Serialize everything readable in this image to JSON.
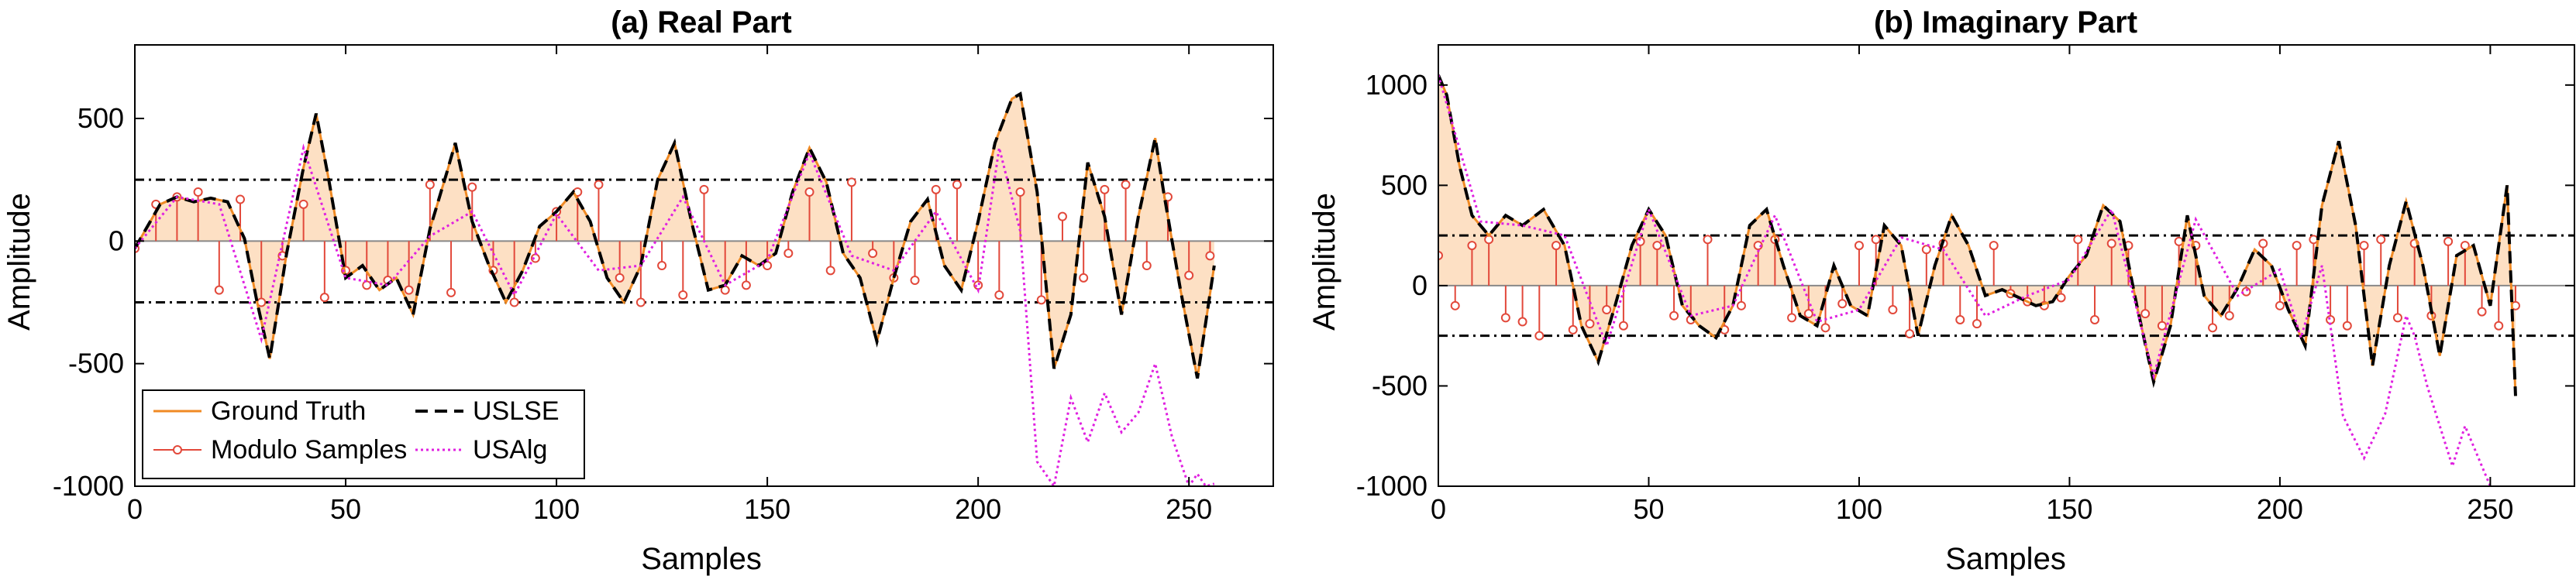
{
  "chart_data": [
    {
      "type": "line",
      "title": "(a) Real Part",
      "xlabel": "Samples",
      "ylabel": "Amplitude",
      "xlim": [
        0,
        270
      ],
      "ylim": [
        -1000,
        800
      ],
      "xticks": [
        0,
        50,
        100,
        150,
        200,
        250
      ],
      "yticks": [
        -1000,
        -500,
        0,
        500
      ],
      "ytick_labels": [
        "-1000",
        "-500",
        "0",
        "500"
      ],
      "threshold": 250,
      "legend_position": "bottom-left",
      "legend_entries": [
        "Ground Truth",
        "USLSE",
        "Modulo Samples",
        "USAlg"
      ],
      "series": [
        {
          "name": "Ground Truth",
          "x": [
            0,
            6,
            10,
            14,
            18,
            22,
            26,
            29,
            32,
            36,
            40,
            43,
            46,
            50,
            54,
            58,
            62,
            66,
            70,
            74,
            76,
            80,
            84,
            88,
            92,
            96,
            100,
            104,
            108,
            112,
            116,
            120,
            124,
            128,
            132,
            136,
            140,
            144,
            148,
            152,
            156,
            160,
            164,
            168,
            172,
            176,
            180,
            184,
            188,
            192,
            196,
            200,
            204,
            208,
            210,
            214,
            218,
            222,
            226,
            230,
            234,
            238,
            242,
            244,
            248,
            252,
            256
          ],
          "y": [
            -30,
            150,
            180,
            160,
            175,
            160,
            10,
            -250,
            -480,
            -50,
            300,
            520,
            250,
            -150,
            -100,
            -200,
            -150,
            -300,
            50,
            280,
            400,
            80,
            -100,
            -250,
            -120,
            60,
            120,
            200,
            80,
            -150,
            -250,
            -100,
            250,
            400,
            80,
            -200,
            -180,
            -60,
            -100,
            -50,
            200,
            380,
            240,
            -50,
            -150,
            -410,
            -150,
            80,
            170,
            -100,
            -200,
            80,
            400,
            580,
            600,
            200,
            -520,
            -300,
            320,
            100,
            -300,
            100,
            420,
            200,
            -200,
            -560,
            -100
          ]
        },
        {
          "name": "USLSE",
          "x": [
            0,
            6,
            10,
            14,
            18,
            22,
            26,
            29,
            32,
            36,
            40,
            43,
            46,
            50,
            54,
            58,
            62,
            66,
            70,
            74,
            76,
            80,
            84,
            88,
            92,
            96,
            100,
            104,
            108,
            112,
            116,
            120,
            124,
            128,
            132,
            136,
            140,
            144,
            148,
            152,
            156,
            160,
            164,
            168,
            172,
            176,
            180,
            184,
            188,
            192,
            196,
            200,
            204,
            208,
            210,
            214,
            218,
            222,
            226,
            230,
            234,
            238,
            242,
            244,
            248,
            252,
            256
          ],
          "y": [
            -30,
            150,
            180,
            160,
            175,
            160,
            10,
            -250,
            -480,
            -50,
            300,
            520,
            250,
            -150,
            -100,
            -200,
            -150,
            -300,
            50,
            280,
            400,
            80,
            -100,
            -250,
            -120,
            60,
            120,
            200,
            80,
            -150,
            -250,
            -100,
            250,
            400,
            80,
            -200,
            -180,
            -60,
            -100,
            -50,
            200,
            380,
            240,
            -50,
            -150,
            -410,
            -150,
            80,
            170,
            -100,
            -200,
            80,
            400,
            580,
            600,
            200,
            -520,
            -300,
            320,
            100,
            -300,
            100,
            420,
            200,
            -200,
            -560,
            -100
          ]
        },
        {
          "name": "USAlg",
          "x": [
            0,
            10,
            20,
            30,
            40,
            50,
            60,
            70,
            80,
            90,
            100,
            110,
            120,
            130,
            140,
            150,
            160,
            170,
            180,
            190,
            200,
            205,
            210,
            214,
            218,
            222,
            226,
            230,
            234,
            238,
            242,
            246,
            250,
            252,
            254,
            256
          ],
          "y": [
            -30,
            180,
            150,
            -400,
            380,
            -150,
            -180,
            20,
            120,
            -220,
            110,
            -120,
            -100,
            180,
            -180,
            -80,
            360,
            -60,
            -120,
            120,
            -200,
            380,
            40,
            -900,
            -1000,
            -640,
            -820,
            -620,
            -780,
            -700,
            -500,
            -800,
            -1000,
            -950,
            -1000,
            -990
          ]
        },
        {
          "name": "Modulo Samples",
          "x": [
            0,
            5,
            10,
            15,
            20,
            25,
            30,
            35,
            40,
            45,
            50,
            55,
            60,
            65,
            70,
            75,
            80,
            85,
            90,
            95,
            100,
            105,
            110,
            115,
            120,
            125,
            130,
            135,
            140,
            145,
            150,
            155,
            160,
            165,
            170,
            175,
            180,
            185,
            190,
            195,
            200,
            205,
            210,
            215,
            220,
            225,
            230,
            235,
            240,
            245,
            250,
            255
          ],
          "y": [
            -30,
            150,
            180,
            200,
            -200,
            170,
            -250,
            -60,
            150,
            -230,
            -120,
            -180,
            -160,
            -200,
            230,
            -210,
            220,
            -120,
            -250,
            -70,
            120,
            200,
            230,
            -150,
            -250,
            -100,
            -220,
            210,
            -200,
            -180,
            -100,
            -50,
            200,
            -120,
            240,
            -50,
            -150,
            -160,
            210,
            230,
            -180,
            -220,
            200,
            -240,
            100,
            -150,
            210,
            230,
            -100,
            180,
            -140,
            -60
          ]
        }
      ]
    },
    {
      "type": "line",
      "title": "(b) Imaginary Part",
      "xlabel": "Samples",
      "ylabel": "Amplitude",
      "xlim": [
        0,
        270
      ],
      "ylim": [
        -1000,
        1200
      ],
      "xticks": [
        0,
        50,
        100,
        150,
        200,
        250
      ],
      "yticks": [
        -1000,
        -500,
        0,
        500,
        1000
      ],
      "ytick_labels": [
        "-1000",
        "-500",
        "0",
        "500",
        "1000"
      ],
      "threshold": 250,
      "series": [
        {
          "name": "Ground Truth",
          "x": [
            0,
            2,
            5,
            8,
            12,
            16,
            20,
            25,
            30,
            34,
            38,
            42,
            46,
            50,
            54,
            58,
            62,
            66,
            70,
            74,
            78,
            82,
            86,
            90,
            94,
            98,
            102,
            106,
            110,
            114,
            118,
            122,
            126,
            130,
            134,
            138,
            142,
            146,
            150,
            154,
            158,
            162,
            166,
            170,
            174,
            178,
            182,
            186,
            190,
            194,
            198,
            202,
            206,
            210,
            214,
            218,
            222,
            226,
            230,
            234,
            238,
            242,
            246,
            250,
            254,
            256
          ],
          "y": [
            1050,
            950,
            600,
            350,
            250,
            350,
            300,
            380,
            200,
            -200,
            -380,
            -100,
            200,
            380,
            250,
            -100,
            -200,
            -260,
            -100,
            300,
            380,
            100,
            -150,
            -200,
            100,
            -100,
            -150,
            300,
            200,
            -250,
            100,
            350,
            200,
            -50,
            -20,
            -60,
            -100,
            -80,
            50,
            150,
            400,
            320,
            -100,
            -480,
            -200,
            350,
            -50,
            -150,
            -10,
            180,
            100,
            -120,
            -300,
            400,
            720,
            300,
            -400,
            100,
            420,
            100,
            -350,
            150,
            200,
            -100,
            500,
            -550
          ]
        },
        {
          "name": "USLSE",
          "x": [
            0,
            2,
            5,
            8,
            12,
            16,
            20,
            25,
            30,
            34,
            38,
            42,
            46,
            50,
            54,
            58,
            62,
            66,
            70,
            74,
            78,
            82,
            86,
            90,
            94,
            98,
            102,
            106,
            110,
            114,
            118,
            122,
            126,
            130,
            134,
            138,
            142,
            146,
            150,
            154,
            158,
            162,
            166,
            170,
            174,
            178,
            182,
            186,
            190,
            194,
            198,
            202,
            206,
            210,
            214,
            218,
            222,
            226,
            230,
            234,
            238,
            242,
            246,
            250,
            254,
            256
          ],
          "y": [
            1050,
            950,
            600,
            350,
            250,
            350,
            300,
            380,
            200,
            -200,
            -380,
            -100,
            200,
            380,
            250,
            -100,
            -200,
            -260,
            -100,
            300,
            380,
            100,
            -150,
            -200,
            100,
            -100,
            -150,
            300,
            200,
            -250,
            100,
            350,
            200,
            -50,
            -20,
            -60,
            -100,
            -80,
            50,
            150,
            400,
            320,
            -100,
            -480,
            -200,
            350,
            -50,
            -150,
            -10,
            180,
            100,
            -120,
            -300,
            400,
            720,
            300,
            -400,
            100,
            420,
            100,
            -350,
            150,
            200,
            -100,
            500,
            -550
          ]
        },
        {
          "name": "USAlg",
          "x": [
            0,
            10,
            20,
            30,
            40,
            50,
            60,
            70,
            80,
            90,
            100,
            110,
            120,
            130,
            140,
            150,
            160,
            170,
            180,
            190,
            200,
            205,
            210,
            215,
            220,
            225,
            230,
            232,
            235,
            238,
            241,
            244,
            247,
            250
          ],
          "y": [
            1050,
            320,
            300,
            250,
            -300,
            380,
            -150,
            -100,
            350,
            -180,
            -120,
            240,
            180,
            -150,
            -50,
            30,
            380,
            -450,
            330,
            -50,
            80,
            -260,
            100,
            -650,
            -860,
            -640,
            -150,
            -250,
            -500,
            -700,
            -900,
            -700,
            -850,
            -1000
          ]
        },
        {
          "name": "Modulo Samples",
          "x": [
            0,
            4,
            8,
            12,
            16,
            20,
            24,
            28,
            32,
            36,
            40,
            44,
            48,
            52,
            56,
            60,
            64,
            68,
            72,
            76,
            80,
            84,
            88,
            92,
            96,
            100,
            104,
            108,
            112,
            116,
            120,
            124,
            128,
            132,
            136,
            140,
            144,
            148,
            152,
            156,
            160,
            164,
            168,
            172,
            176,
            180,
            184,
            188,
            192,
            196,
            200,
            204,
            208,
            212,
            216,
            220,
            224,
            228,
            232,
            236,
            240,
            244,
            248,
            252,
            256
          ],
          "y": [
            150,
            -100,
            200,
            230,
            -160,
            -180,
            -250,
            200,
            -220,
            -190,
            -120,
            -200,
            220,
            200,
            -150,
            -170,
            230,
            -220,
            -100,
            200,
            230,
            -160,
            -140,
            -210,
            -90,
            200,
            230,
            -120,
            -240,
            180,
            210,
            -170,
            -190,
            200,
            -40,
            -80,
            -100,
            -60,
            230,
            -170,
            210,
            200,
            -140,
            -200,
            220,
            200,
            -210,
            -150,
            -30,
            210,
            -100,
            200,
            230,
            -170,
            -200,
            200,
            230,
            -160,
            210,
            -150,
            220,
            200,
            -130,
            -200,
            -100
          ]
        }
      ]
    }
  ]
}
